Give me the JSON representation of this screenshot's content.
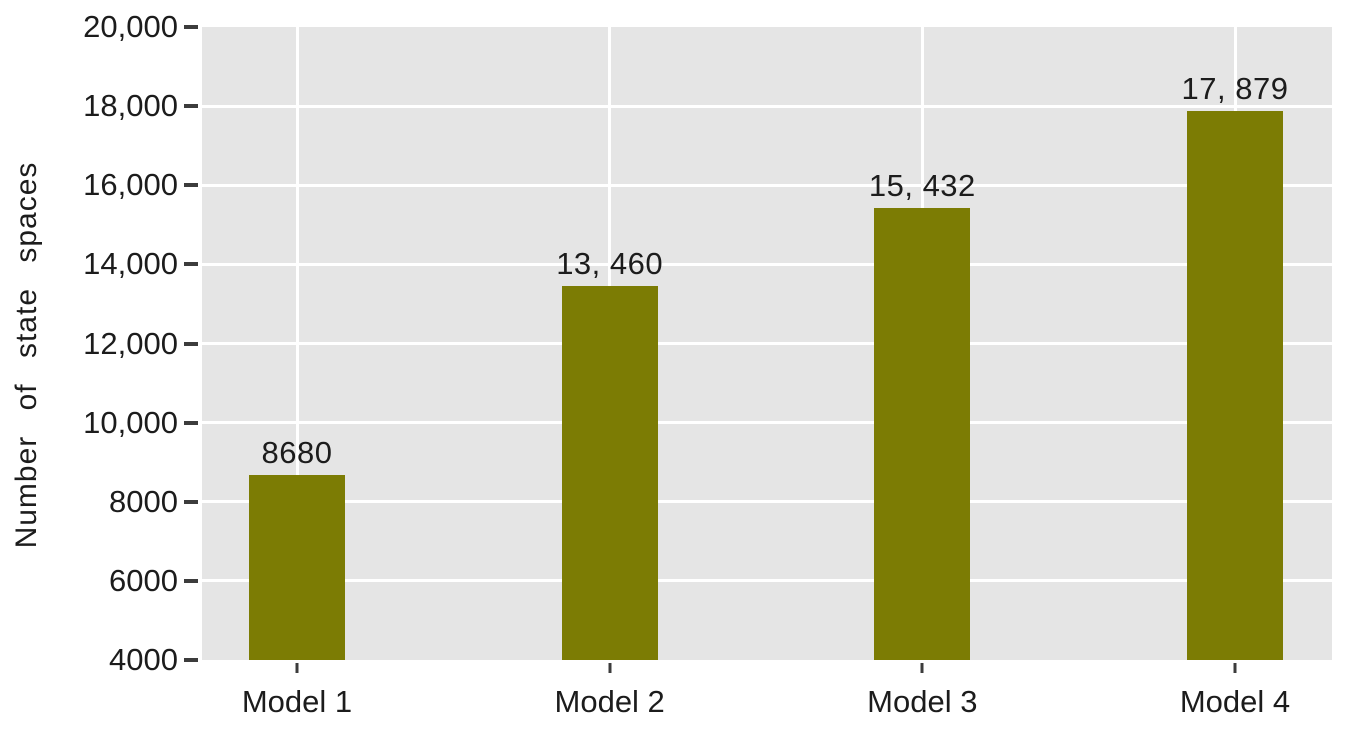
{
  "chart_data": {
    "type": "bar",
    "title": "",
    "xlabel": "",
    "ylabel": "Number of state spaces",
    "categories": [
      "Model 1",
      "Model 2",
      "Model 3",
      "Model 4"
    ],
    "values": [
      8680,
      13460,
      15432,
      17879
    ],
    "bar_labels": [
      "8680",
      "13, 460",
      "15, 432",
      "17, 879"
    ],
    "ylim": [
      4000,
      20000
    ],
    "ytick_values": [
      4000,
      6000,
      8000,
      10000,
      12000,
      14000,
      16000,
      18000,
      20000
    ],
    "ytick_labels": [
      "4000",
      "6000",
      "8000",
      "10,000",
      "12,000",
      "14,000",
      "16,000",
      "18,000",
      "20,000"
    ],
    "grid": "horizontal-and-vertical-white-gridlines",
    "legend": "none",
    "colors": {
      "bar": "#7c7c04",
      "plot_background": "#e5e5e5",
      "gridline": "#ffffff",
      "text": "#1c1c1c",
      "tick": "#3c3c3c",
      "page_background": "#ffffff"
    }
  }
}
